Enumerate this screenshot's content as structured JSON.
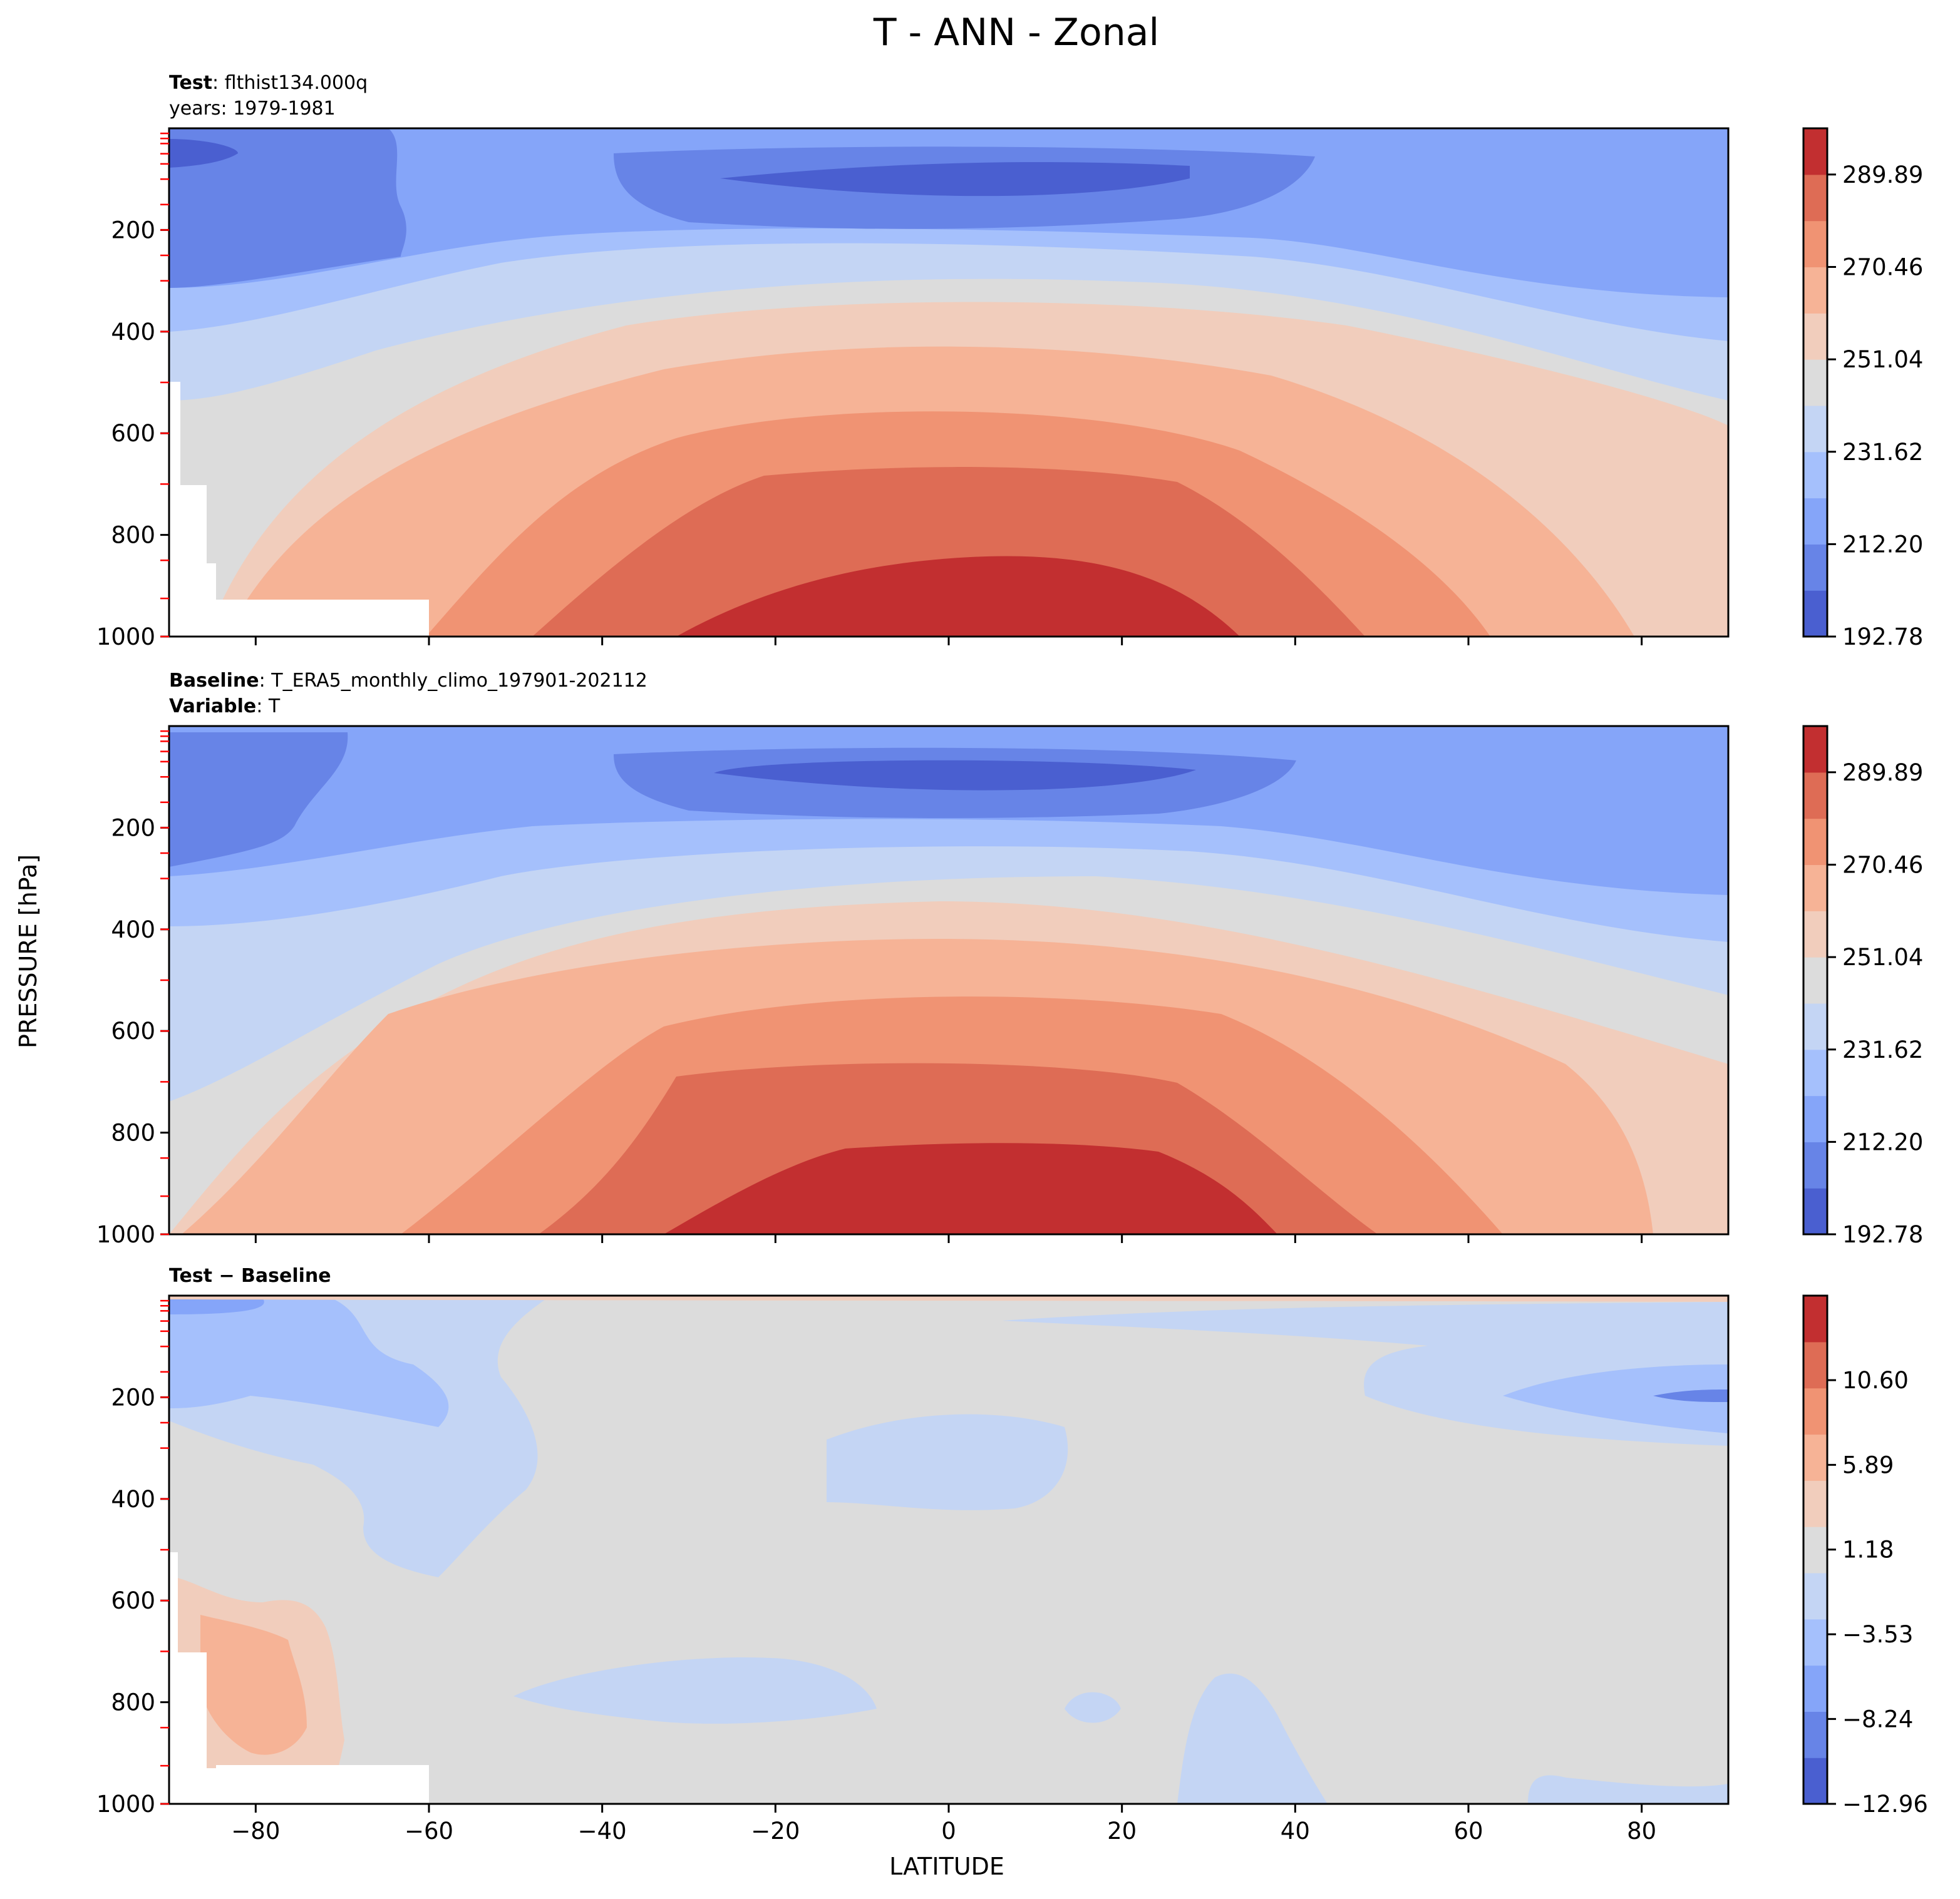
{
  "figure": {
    "title": "T - ANN - Zonal",
    "ylabel": "PRESSURE [hPa]",
    "xlabel": "LATITUDE"
  },
  "colors": {
    "levels_main": [
      "#4a5fd0",
      "#6784e7",
      "#85a5f9",
      "#a5c0fc",
      "#c4d5f4",
      "#dcdcdc",
      "#f1cdbc",
      "#f6b396",
      "#f09373",
      "#de6c55",
      "#c22f30"
    ],
    "levels_diff": [
      "#4a5fd0",
      "#6784e7",
      "#85a5f9",
      "#a5c0fc",
      "#c4d5f4",
      "#dcdcdc",
      "#f1cdbc",
      "#f6b396",
      "#f09373",
      "#de6c55",
      "#c22f30"
    ],
    "missing": "#ffffff",
    "level_ticks": "#ff0000"
  },
  "chart_data": [
    {
      "type": "contourf",
      "panel": "test",
      "header": [
        {
          "bold": "Test",
          "text": ": flthist134.000q"
        },
        {
          "bold": "",
          "text": "years: 1979-1981"
        }
      ],
      "x": [
        -90,
        90
      ],
      "xticks": [
        -80,
        -60,
        -40,
        -20,
        0,
        20,
        40,
        60,
        80
      ],
      "xticklabels": [
        "−80",
        "−60",
        "−40",
        "−20",
        "0",
        "20",
        "40",
        "60",
        "80"
      ],
      "ylim": [
        0,
        1000
      ],
      "yticks": [
        200,
        400,
        600,
        800,
        1000
      ],
      "yticklabels": [
        "200",
        "400",
        "600",
        "800",
        "1000"
      ],
      "ylevels": [
        10,
        20,
        30,
        50,
        70,
        100,
        150,
        200,
        250,
        300,
        400,
        500,
        600,
        700,
        850,
        925,
        1000
      ],
      "contours": [
        [
          -90,
          500,
          420,
          310,
          245,
          205,
          185
        ],
        [
          -90,
          640,
          555,
          440,
          360,
          305,
          280
        ],
        [
          -90,
          760,
          660,
          540,
          450,
          385,
          345
        ],
        [
          -90,
          900,
          805,
          665,
          560,
          480,
          420
        ],
        [
          -90,
          1040,
          975,
          800,
          665,
          570,
          500
        ],
        [
          -90,
          1170,
          1140,
          960,
          775,
          660,
          580
        ],
        [
          -90,
          1280,
          1270,
          1150,
          905,
          760,
          660
        ],
        [
          -90,
          1380,
          1380,
          1300,
          1040,
          860,
          740
        ],
        [
          -90,
          1420,
          1420,
          1400,
          1170,
          980,
          860
        ]
      ],
      "colorbar": {
        "ticks": [
          192.78,
          212.2,
          231.62,
          251.04,
          270.46,
          289.89
        ],
        "ticklabels": [
          "192.78",
          "212.20",
          "231.62",
          "251.04",
          "270.46",
          "289.89"
        ],
        "range": [
          192.78,
          299.6
        ]
      },
      "missing_region": "low-latitude boundary near -90 to -60, 700-1000 hPa"
    },
    {
      "type": "contourf",
      "panel": "baseline",
      "header": [
        {
          "bold": "Baseline",
          "text": ": T_ERA5_monthly_climo_197901-202112"
        },
        {
          "bold": "Variable",
          "text": ": T"
        }
      ],
      "x": [
        -90,
        90
      ],
      "xticks": [
        -80,
        -60,
        -40,
        -20,
        0,
        20,
        40,
        60,
        80
      ],
      "xticklabels": [
        "−80",
        "−60",
        "−40",
        "−20",
        "0",
        "20",
        "40",
        "60",
        "80"
      ],
      "ylim": [
        0,
        1000
      ],
      "yticks": [
        200,
        400,
        600,
        800,
        1000
      ],
      "yticklabels": [
        "200",
        "400",
        "600",
        "800",
        "1000"
      ],
      "ylevels": [
        10,
        20,
        30,
        50,
        70,
        100,
        150,
        200,
        250,
        300,
        400,
        500,
        600,
        700,
        850,
        925,
        1000
      ],
      "colorbar": {
        "ticks": [
          192.78,
          212.2,
          231.62,
          251.04,
          270.46,
          289.89
        ],
        "ticklabels": [
          "192.78",
          "212.20",
          "231.62",
          "251.04",
          "270.46",
          "289.89"
        ],
        "range": [
          192.78,
          299.6
        ]
      }
    },
    {
      "type": "contourf",
      "panel": "diff",
      "header": [
        {
          "bold": "Test − Baseline",
          "text": ""
        }
      ],
      "x": [
        -90,
        90
      ],
      "xticks": [
        -80,
        -60,
        -40,
        -20,
        0,
        20,
        40,
        60,
        80
      ],
      "xticklabels": [
        "−80",
        "−60",
        "−40",
        "−20",
        "0",
        "20",
        "40",
        "60",
        "80"
      ],
      "ylim": [
        0,
        1000
      ],
      "yticks": [
        200,
        400,
        600,
        800,
        1000
      ],
      "yticklabels": [
        "200",
        "400",
        "600",
        "800",
        "1000"
      ],
      "ylevels": [
        10,
        20,
        30,
        50,
        70,
        100,
        150,
        200,
        250,
        300,
        400,
        500,
        600,
        700,
        850,
        925,
        1000
      ],
      "colorbar": {
        "ticks": [
          -12.96,
          -8.24,
          -3.53,
          1.18,
          5.89,
          10.6
        ],
        "ticklabels": [
          "−12.96",
          "−8.24",
          "−3.53",
          "1.18",
          "5.89",
          "10.60"
        ],
        "range": [
          -12.96,
          15.3
        ]
      }
    }
  ]
}
